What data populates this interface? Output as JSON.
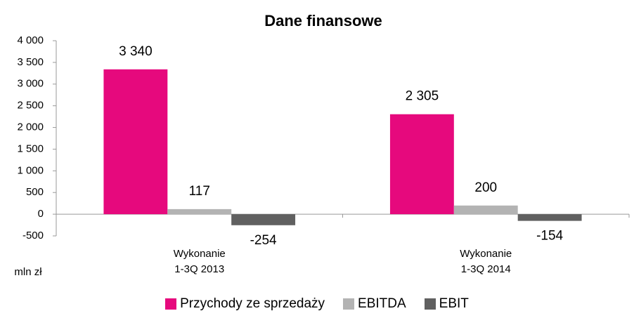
{
  "chart_data": {
    "type": "bar",
    "title": "Dane finansowe",
    "y_label": "mln zł",
    "categories": [
      "Wykonanie\n1-3Q 2013",
      "Wykonanie\n1-3Q 2014"
    ],
    "series": [
      {
        "name": "Przychody ze sprzedaży",
        "color": "#e6097d",
        "values": [
          3340,
          2305
        ],
        "value_labels": [
          "3 340",
          "2 305"
        ]
      },
      {
        "name": "EBITDA",
        "color": "#b3b3b3",
        "values": [
          117,
          200
        ]
      },
      {
        "name": "EBIT",
        "color": "#606060",
        "values": [
          -254,
          -154
        ]
      }
    ],
    "ylim": [
      -500,
      4000
    ],
    "yticks": [
      {
        "value": -500,
        "label": "-500"
      },
      0,
      500,
      {
        "value": 1000,
        "label": "1 000"
      },
      {
        "value": 1500,
        "label": "1 500"
      },
      {
        "value": 2000,
        "label": "2 000"
      },
      {
        "value": 2500,
        "label": "2 500"
      },
      {
        "value": 3000,
        "label": "3 000"
      },
      {
        "value": 3500,
        "label": "3 500"
      },
      {
        "value": 4000,
        "label": "4 000"
      }
    ],
    "legend": "bottom"
  }
}
